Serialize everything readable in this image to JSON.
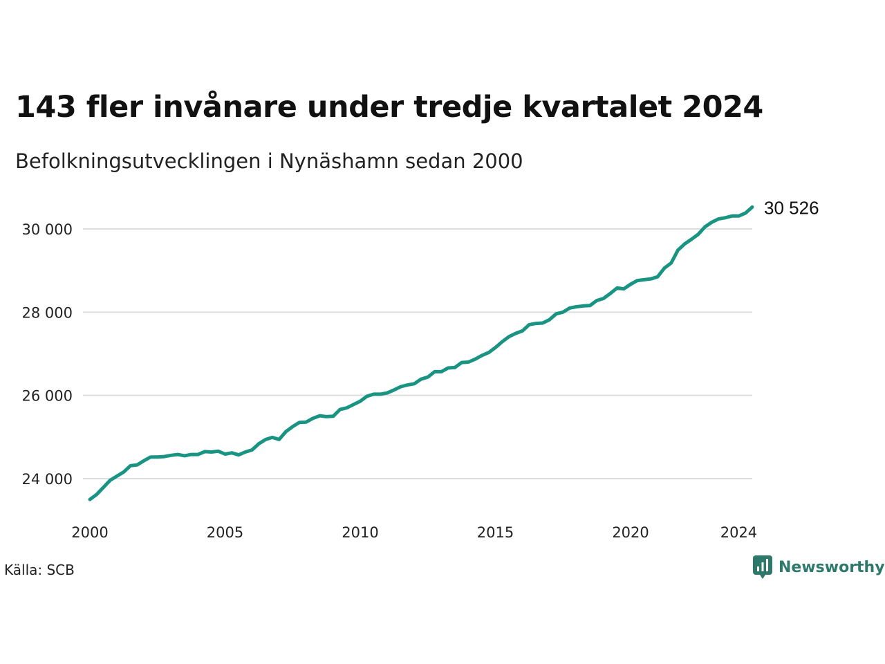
{
  "title": "143 fler invånare under tredje kvartalet 2024",
  "subtitle": "Befolkningsutvecklingen i Nynäshamn sedan 2000",
  "source": "Källa: SCB",
  "brand": "Newsworthy",
  "colors": {
    "line": "#1a9482",
    "grid": "#dddddd",
    "brand": "#2d7a6c"
  },
  "chart_data": {
    "type": "line",
    "x_unit": "quarter (decimal year)",
    "x": [
      2000.0,
      2000.25,
      2000.5,
      2000.75,
      2001.0,
      2001.25,
      2001.5,
      2001.75,
      2002.0,
      2002.25,
      2002.5,
      2002.75,
      2003.0,
      2003.25,
      2003.5,
      2003.75,
      2004.0,
      2004.25,
      2004.5,
      2004.75,
      2005.0,
      2005.25,
      2005.5,
      2005.75,
      2006.0,
      2006.25,
      2006.5,
      2006.75,
      2007.0,
      2007.25,
      2007.5,
      2007.75,
      2008.0,
      2008.25,
      2008.5,
      2008.75,
      2009.0,
      2009.25,
      2009.5,
      2009.75,
      2010.0,
      2010.25,
      2010.5,
      2010.75,
      2011.0,
      2011.25,
      2011.5,
      2011.75,
      2012.0,
      2012.25,
      2012.5,
      2012.75,
      2013.0,
      2013.25,
      2013.5,
      2013.75,
      2014.0,
      2014.25,
      2014.5,
      2014.75,
      2015.0,
      2015.25,
      2015.5,
      2015.75,
      2016.0,
      2016.25,
      2016.5,
      2016.75,
      2017.0,
      2017.25,
      2017.5,
      2017.75,
      2018.0,
      2018.25,
      2018.5,
      2018.75,
      2019.0,
      2019.25,
      2019.5,
      2019.75,
      2020.0,
      2020.25,
      2020.5,
      2020.75,
      2021.0,
      2021.25,
      2021.5,
      2021.75,
      2022.0,
      2022.25,
      2022.5,
      2022.75,
      2023.0,
      2023.25,
      2023.5,
      2023.75,
      2024.0,
      2024.25,
      2024.5
    ],
    "values": [
      23500,
      23620,
      23790,
      23960,
      24060,
      24160,
      24310,
      24330,
      24430,
      24520,
      24520,
      24530,
      24560,
      24580,
      24550,
      24580,
      24580,
      24650,
      24640,
      24660,
      24590,
      24620,
      24570,
      24640,
      24690,
      24840,
      24940,
      24990,
      24940,
      25130,
      25250,
      25350,
      25360,
      25450,
      25510,
      25490,
      25500,
      25660,
      25700,
      25780,
      25860,
      25980,
      26030,
      26030,
      26060,
      26130,
      26210,
      26250,
      26280,
      26390,
      26440,
      26570,
      26570,
      26660,
      26670,
      26790,
      26800,
      26870,
      26960,
      27030,
      27150,
      27290,
      27410,
      27490,
      27550,
      27700,
      27730,
      27740,
      27820,
      27960,
      28000,
      28100,
      28130,
      28150,
      28160,
      28280,
      28330,
      28450,
      28580,
      28560,
      28670,
      28760,
      28780,
      28800,
      28850,
      29060,
      29180,
      29490,
      29640,
      29750,
      29870,
      30050,
      30160,
      30240,
      30270,
      30310,
      30310,
      30380,
      30526
    ],
    "end_label": "30 526",
    "y_ticks": [
      24000,
      26000,
      28000,
      30000
    ],
    "y_tick_labels": [
      "24 000",
      "26 000",
      "28 000",
      "30 000"
    ],
    "x_ticks": [
      2000,
      2005,
      2010,
      2015,
      2020,
      2024
    ],
    "x_tick_labels": [
      "2000",
      "2005",
      "2010",
      "2015",
      "2020",
      "2024"
    ],
    "xlim": [
      2000,
      2024.5
    ],
    "ylim": [
      23000,
      31000
    ],
    "grid": "horizontal"
  }
}
